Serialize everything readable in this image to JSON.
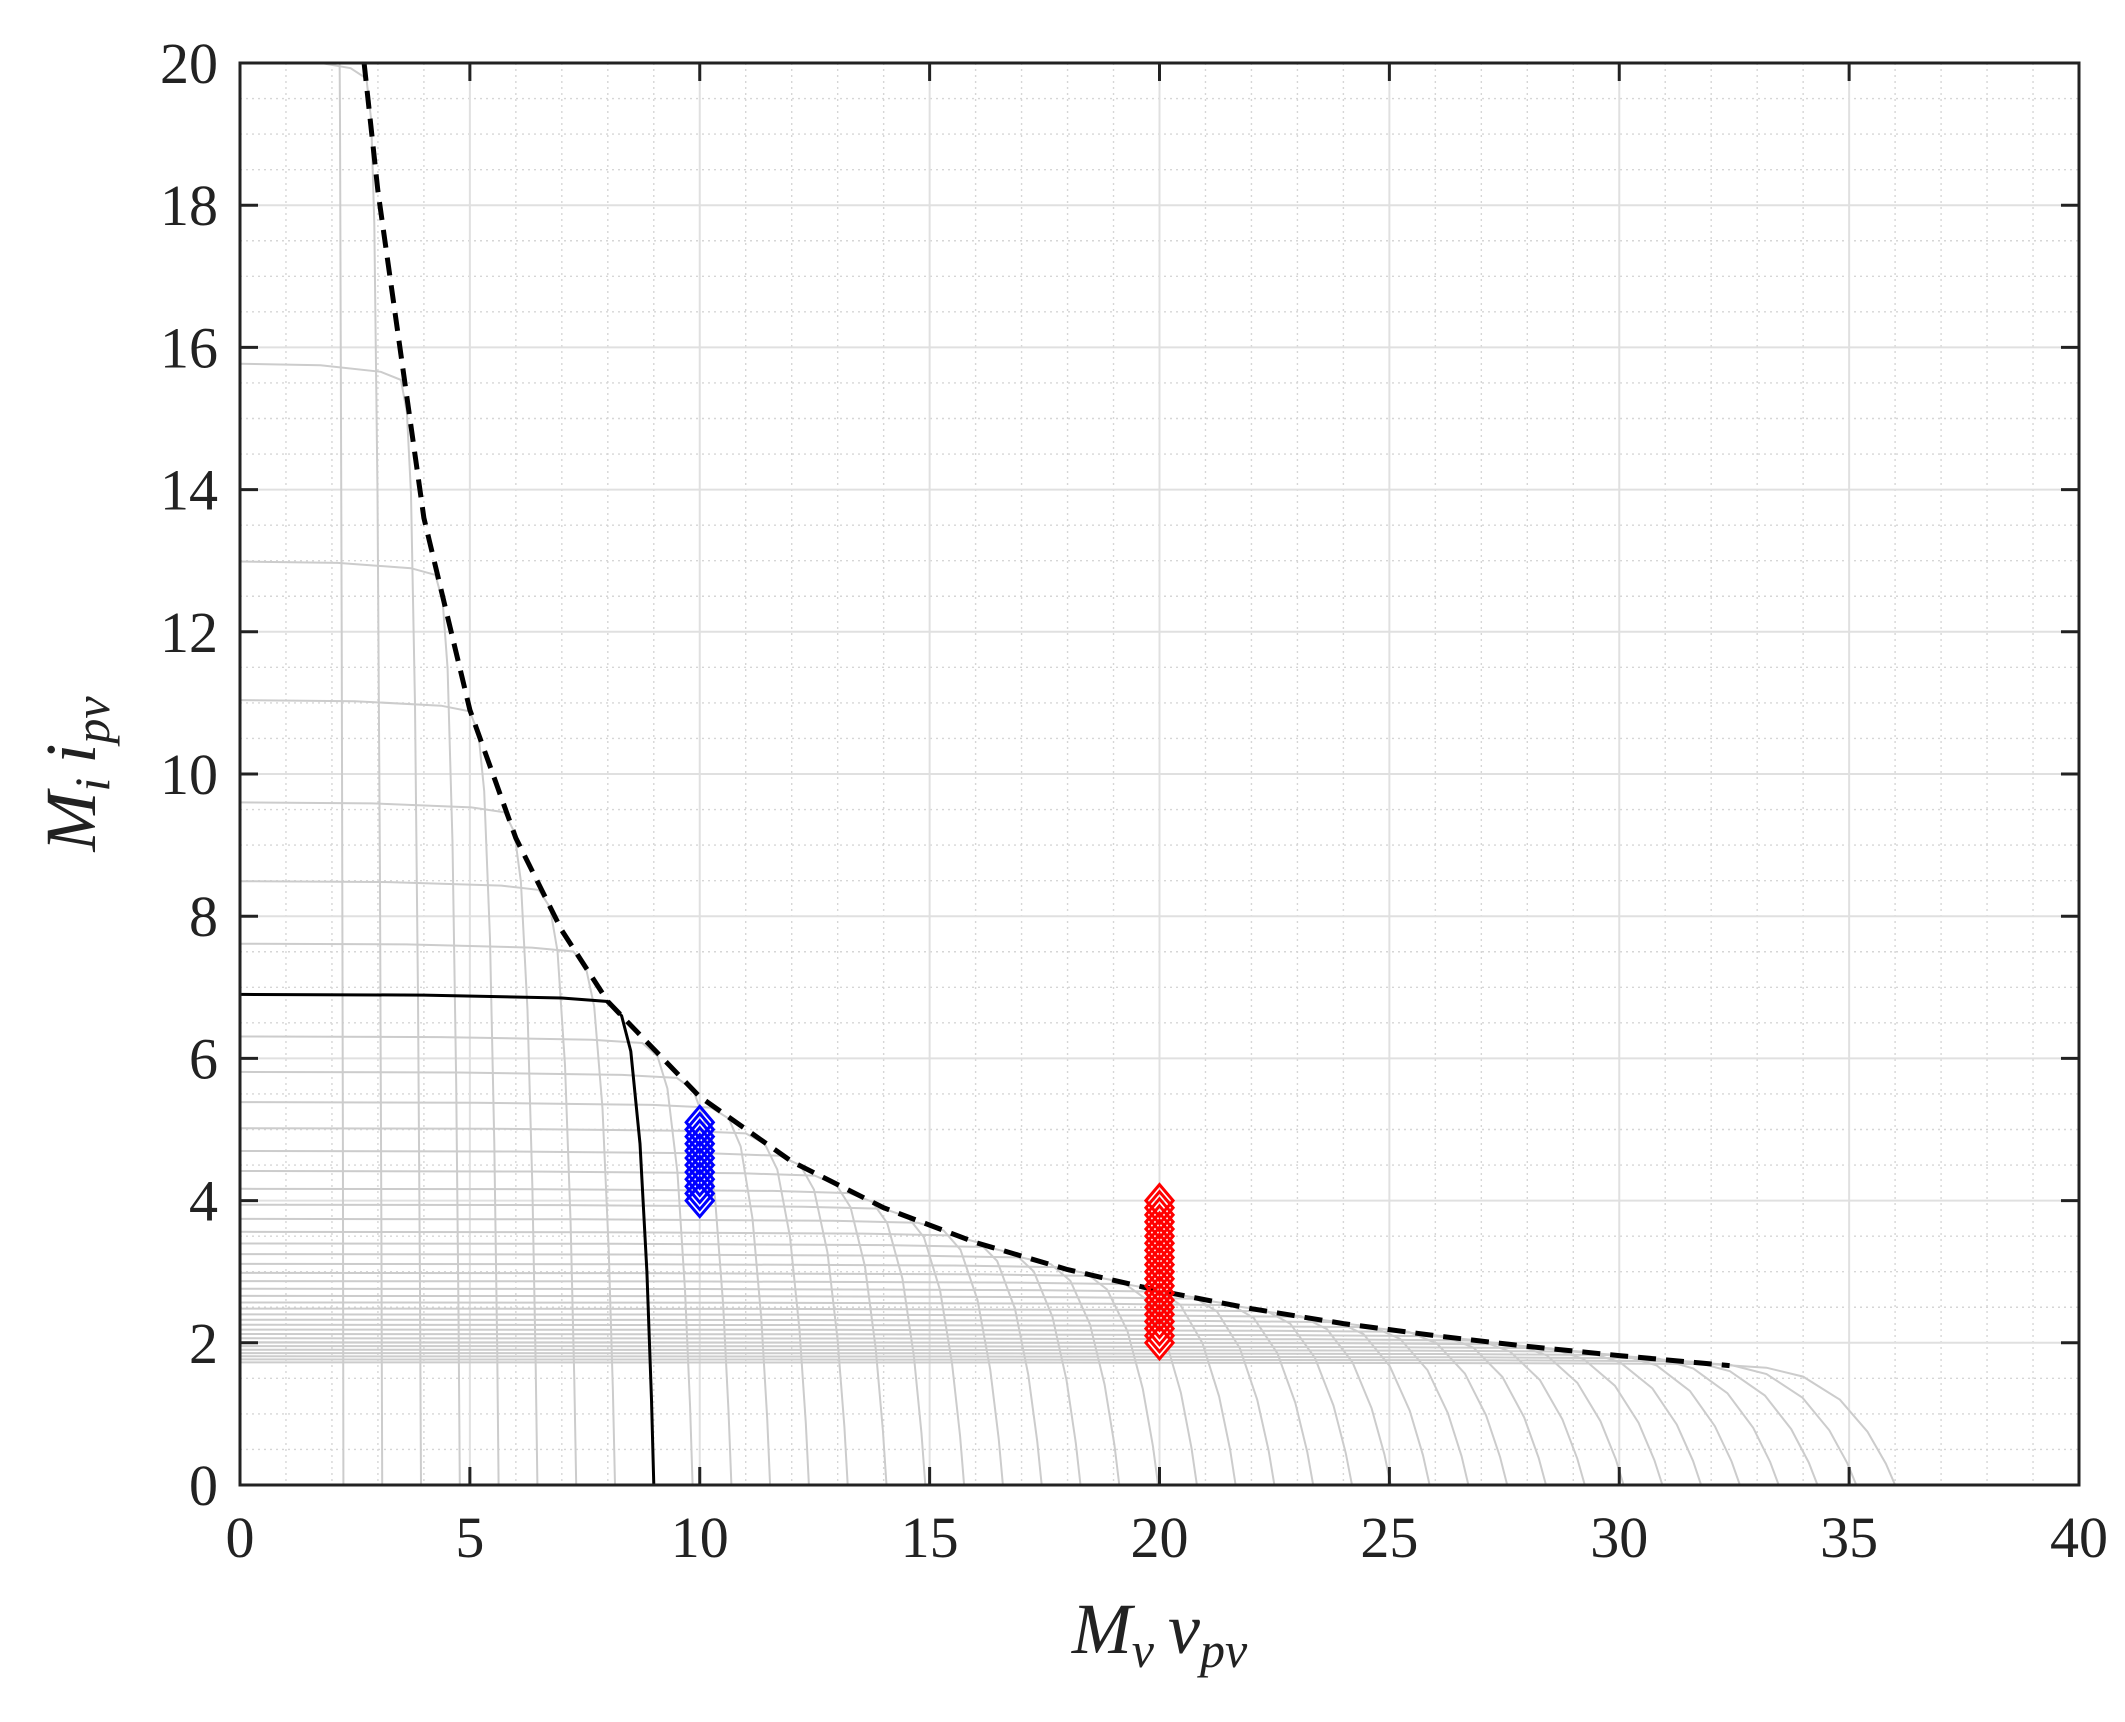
{
  "chart_data": {
    "type": "line",
    "title": "",
    "xlabel": {
      "main": "M",
      "sub": "v",
      "tail": "v",
      "tail_sub": "pv"
    },
    "ylabel": {
      "main": "M",
      "sub": "i",
      "tail": "i",
      "tail_sub": "pv"
    },
    "xlim": [
      0,
      40
    ],
    "ylim": [
      0,
      20
    ],
    "xticks": [
      0,
      5,
      10,
      15,
      20,
      25,
      30,
      35,
      40
    ],
    "yticks": [
      0,
      2,
      4,
      6,
      8,
      10,
      12,
      14,
      16,
      18,
      20
    ],
    "xtick_labels": [
      "0",
      "5",
      "10",
      "15",
      "20",
      "25",
      "30",
      "35",
      "40"
    ],
    "ytick_labels": [
      "0",
      "2",
      "4",
      "6",
      "8",
      "10",
      "12",
      "14",
      "16",
      "18",
      "20"
    ],
    "grid": {
      "major": true,
      "minor": true,
      "minor_style": "dotted"
    },
    "colors": {
      "family": "#cccccc",
      "base_curve": "#000000",
      "envelope": "#000000",
      "blue_markers": "#0000ff",
      "red_markers": "#ff0000",
      "axes": "#222222",
      "major_grid": "#e0e0e0",
      "minor_grid": "#d6d6d6"
    },
    "curve_family": {
      "description_series": "scaled copies of base I-V curve",
      "base_isc": 6.9,
      "base_voc": 9.0,
      "voltage_scale_range": [
        0.25,
        4.0
      ],
      "current_scale_range": [
        0.25,
        4.0
      ],
      "count": 41
    },
    "series": [
      {
        "role": "base-curve",
        "points": [
          [
            0,
            6.9
          ],
          [
            4,
            6.89
          ],
          [
            7,
            6.85
          ],
          [
            8.0,
            6.8
          ],
          [
            8.3,
            6.6
          ],
          [
            8.5,
            6.1
          ],
          [
            8.7,
            4.8
          ],
          [
            8.85,
            3.0
          ],
          [
            8.95,
            1.2
          ],
          [
            9.0,
            0
          ]
        ]
      },
      {
        "role": "power-envelope",
        "style": "dashed",
        "x": [
          2.7,
          3,
          4,
          5,
          6,
          7,
          8,
          10,
          12,
          14,
          16,
          18,
          20,
          22,
          24,
          26,
          28,
          30,
          32.4
        ],
        "y": [
          20,
          18.2,
          13.6,
          10.9,
          9.1,
          7.8,
          6.8,
          5.46,
          4.55,
          3.9,
          3.41,
          3.03,
          2.73,
          2.48,
          2.27,
          2.1,
          1.95,
          1.82,
          1.68
        ]
      },
      {
        "role": "blue-markers",
        "marker": "diamond",
        "x": [
          10,
          10,
          10,
          10,
          10,
          10,
          10,
          10,
          10,
          10,
          10,
          10
        ],
        "y": [
          4.0,
          4.1,
          4.2,
          4.3,
          4.4,
          4.5,
          4.6,
          4.7,
          4.8,
          4.9,
          5.0,
          5.1
        ]
      },
      {
        "role": "red-markers",
        "marker": "diamond",
        "x": [
          20,
          20,
          20,
          20,
          20,
          20,
          20,
          20,
          20,
          20,
          20,
          20,
          20,
          20,
          20,
          20,
          20,
          20,
          20,
          20,
          20
        ],
        "y": [
          2.0,
          2.1,
          2.2,
          2.3,
          2.4,
          2.5,
          2.6,
          2.7,
          2.8,
          2.9,
          3.0,
          3.1,
          3.2,
          3.3,
          3.4,
          3.5,
          3.6,
          3.7,
          3.8,
          3.9,
          4.0
        ]
      }
    ]
  }
}
